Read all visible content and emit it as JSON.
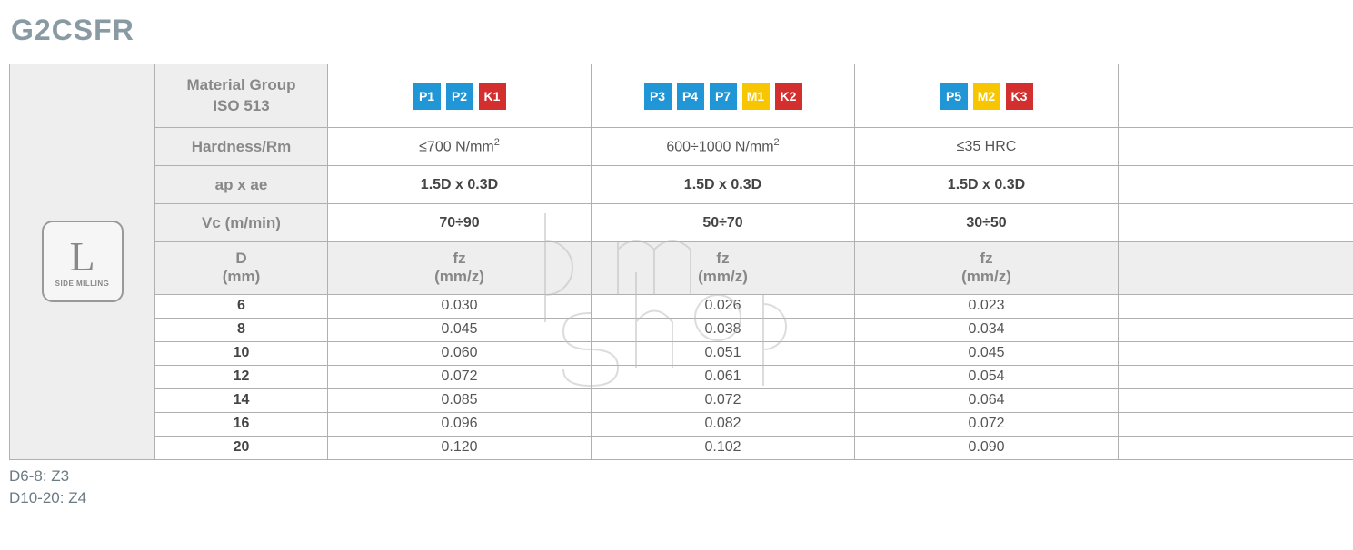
{
  "title": "G2CSFR",
  "icon": {
    "letter": "L",
    "label": "SIDE MILLING"
  },
  "headers": {
    "material_group_line1": "Material Group",
    "material_group_line2": "ISO 513",
    "hardness": "Hardness/Rm",
    "ap_ae": "ap x ae",
    "vc": "Vc (m/min)",
    "d_line1": "D",
    "d_line2": "(mm)",
    "fz_line1": "fz",
    "fz_line2": "(mm/z)"
  },
  "badge_colors": {
    "P": "#2196d6",
    "M": "#f7c600",
    "K": "#d32f2f"
  },
  "groups": [
    {
      "badges": [
        {
          "text": "P1",
          "type": "P"
        },
        {
          "text": "P2",
          "type": "P"
        },
        {
          "text": "K1",
          "type": "K"
        }
      ],
      "hardness": "≤700 N/mm²",
      "ap_ae": "1.5D x 0.3D",
      "vc": "70÷90"
    },
    {
      "badges": [
        {
          "text": "P3",
          "type": "P"
        },
        {
          "text": "P4",
          "type": "P"
        },
        {
          "text": "P7",
          "type": "P"
        },
        {
          "text": "M1",
          "type": "M"
        },
        {
          "text": "K2",
          "type": "K"
        }
      ],
      "hardness": "600÷1000 N/mm²",
      "ap_ae": "1.5D x 0.3D",
      "vc": "50÷70"
    },
    {
      "badges": [
        {
          "text": "P5",
          "type": "P"
        },
        {
          "text": "M2",
          "type": "M"
        },
        {
          "text": "K3",
          "type": "K"
        }
      ],
      "hardness": "≤35 HRC",
      "ap_ae": "1.5D x 0.3D",
      "vc": "30÷50"
    }
  ],
  "rows": [
    {
      "d": "6",
      "fz": [
        "0.030",
        "0.026",
        "0.023"
      ]
    },
    {
      "d": "8",
      "fz": [
        "0.045",
        "0.038",
        "0.034"
      ]
    },
    {
      "d": "10",
      "fz": [
        "0.060",
        "0.051",
        "0.045"
      ]
    },
    {
      "d": "12",
      "fz": [
        "0.072",
        "0.061",
        "0.054"
      ]
    },
    {
      "d": "14",
      "fz": [
        "0.085",
        "0.072",
        "0.064"
      ]
    },
    {
      "d": "16",
      "fz": [
        "0.096",
        "0.082",
        "0.072"
      ]
    },
    {
      "d": "20",
      "fz": [
        "0.120",
        "0.102",
        "0.090"
      ]
    }
  ],
  "footnotes": [
    "D6-8: Z3",
    "D10-20: Z4"
  ],
  "watermark_text": "pm shop",
  "styles": {
    "title_color": "#8a9aa3",
    "border_color": "#b0b0b0",
    "header_bg": "#eeeeee",
    "header_text": "#888888"
  }
}
